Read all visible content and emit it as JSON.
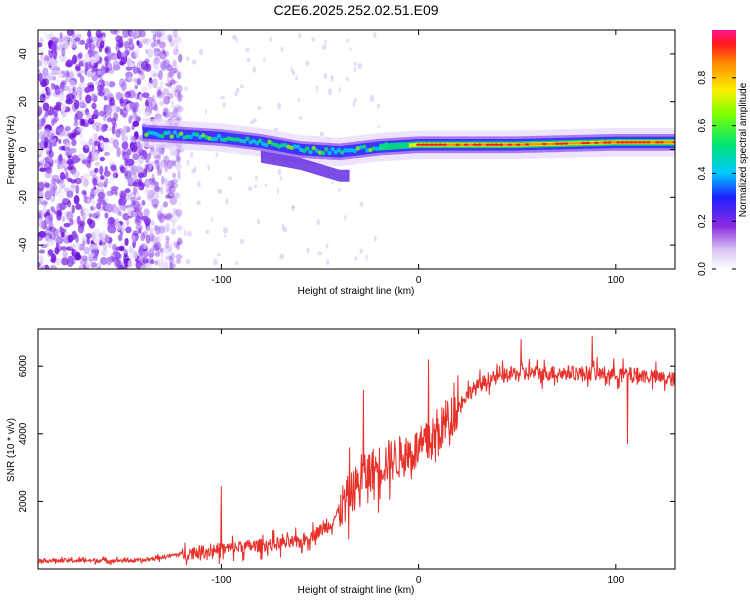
{
  "title": "C2E6.2025.252.02.51.E09",
  "chart_data": [
    {
      "type": "heatmap",
      "name": "spectrogram",
      "xlabel": "Height of straight line (km)",
      "ylabel": "Frequency (Hz)",
      "xlim": [
        -193,
        130
      ],
      "ylim": [
        -50,
        50
      ],
      "x_ticks": [
        -100,
        0,
        100
      ],
      "x_tick_labels": [
        "-100",
        "0",
        "100"
      ],
      "y_ticks": [
        -40,
        -20,
        0,
        20,
        40
      ],
      "y_tick_labels": [
        "-40",
        "-20",
        "0",
        "20",
        "40"
      ],
      "colorbar": {
        "label": "Normalized spectral amplitude",
        "range": [
          0,
          1
        ],
        "ticks": [
          0,
          0.2,
          0.4,
          0.6,
          0.8
        ],
        "tick_labels": [
          "0.0",
          "0.2",
          "0.4",
          "0.6",
          "0.8"
        ],
        "colormap": "rainbow (white-purple-blue-cyan-green-yellow-orange-red-magenta)"
      },
      "features": {
        "noise_region_x": [
          -193,
          -120
        ],
        "signal_track": [
          {
            "x": -140,
            "f": 7
          },
          {
            "x": -120,
            "f": 6
          },
          {
            "x": -100,
            "f": 5
          },
          {
            "x": -80,
            "f": 3
          },
          {
            "x": -60,
            "f": 0
          },
          {
            "x": -40,
            "f": -1
          },
          {
            "x": -20,
            "f": 1
          },
          {
            "x": 0,
            "f": 2
          },
          {
            "x": 50,
            "f": 2
          },
          {
            "x": 100,
            "f": 3
          },
          {
            "x": 130,
            "f": 3
          }
        ],
        "secondary_track": [
          {
            "x": -80,
            "f": -3
          },
          {
            "x": -60,
            "f": -6
          },
          {
            "x": -40,
            "f": -11
          }
        ]
      }
    },
    {
      "type": "line",
      "name": "snr",
      "xlabel": "Height of straight line (km)",
      "ylabel": "SNR (10 * v/v)",
      "xlim": [
        -193,
        130
      ],
      "ylim": [
        0,
        7100
      ],
      "x_ticks": [
        -100,
        0,
        100
      ],
      "x_tick_labels": [
        "-100",
        "0",
        "100"
      ],
      "y_ticks": [
        2000,
        4000,
        6000
      ],
      "y_tick_labels": [
        "2000",
        "4000",
        "6000"
      ],
      "color": "#e8302a",
      "envelope": [
        {
          "x": -193,
          "y": 250
        },
        {
          "x": -140,
          "y": 250
        },
        {
          "x": -120,
          "y": 450
        },
        {
          "x": -90,
          "y": 650
        },
        {
          "x": -60,
          "y": 800
        },
        {
          "x": -45,
          "y": 1300
        },
        {
          "x": -35,
          "y": 2200
        },
        {
          "x": -25,
          "y": 2900
        },
        {
          "x": -15,
          "y": 3200
        },
        {
          "x": -5,
          "y": 3400
        },
        {
          "x": 5,
          "y": 3700
        },
        {
          "x": 15,
          "y": 4400
        },
        {
          "x": 25,
          "y": 5200
        },
        {
          "x": 35,
          "y": 5600
        },
        {
          "x": 50,
          "y": 5800
        },
        {
          "x": 80,
          "y": 5800
        },
        {
          "x": 110,
          "y": 5750
        },
        {
          "x": 130,
          "y": 5600
        }
      ],
      "spikes": [
        {
          "x": -100,
          "y": 2450
        },
        {
          "x": -28,
          "y": 5300
        },
        {
          "x": 5,
          "y": 6200
        },
        {
          "x": 52,
          "y": 6800
        },
        {
          "x": 88,
          "y": 6900
        },
        {
          "x": 106,
          "y": 7050
        },
        {
          "x": 106,
          "y": 3700
        }
      ]
    }
  ]
}
